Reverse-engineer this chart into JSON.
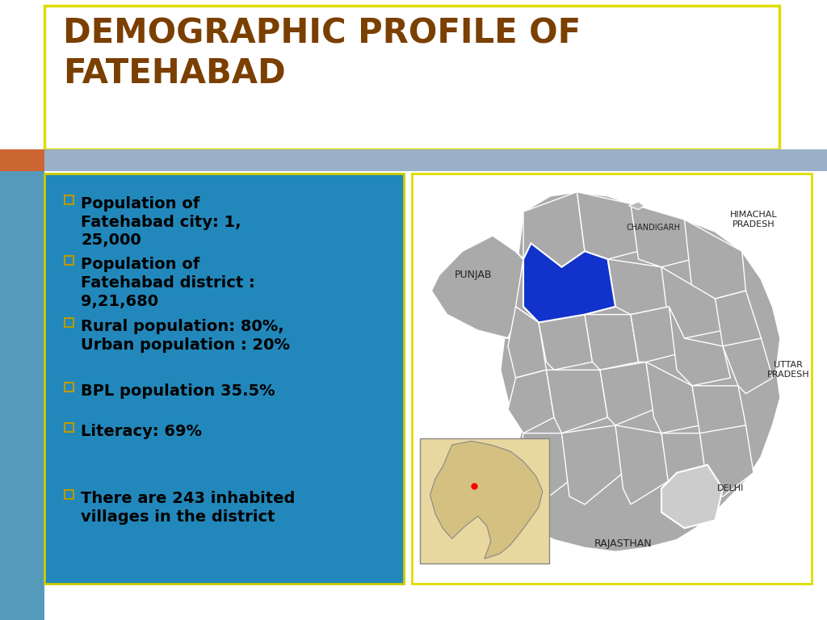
{
  "title_line1": "DEMOGRAPHIC PROFILE OF",
  "title_line2": "FATEHABAD",
  "title_color": "#7B3F00",
  "title_fontsize": 30,
  "background_color": "#f0f0f0",
  "header_box_color": "#ffffff",
  "header_box_border": "#dddd00",
  "accent_orange": "#cc6633",
  "accent_blue_bar": "#9ab0c8",
  "left_panel_bg": "#2288bb",
  "left_panel_border": "#cccc00",
  "bullet_items": [
    "Population of\nFatehabad city: 1,\n25,000",
    "Population of\nFatehabad district :\n9,21,680",
    "Rural population: 80%,\nUrban population : 20%",
    "BPL population 35.5%",
    "Literacy: 69%",
    "There are 243 inhabited\nvillages in the district"
  ],
  "bullet_text_color": "#000000",
  "bullet_fontsize": 14,
  "right_panel_border": "#dddd00",
  "map_gray": "#aaaaaa",
  "map_blue": "#1133cc",
  "map_delhi_gray": "#cccccc",
  "india_bg": "#e8d8a0"
}
